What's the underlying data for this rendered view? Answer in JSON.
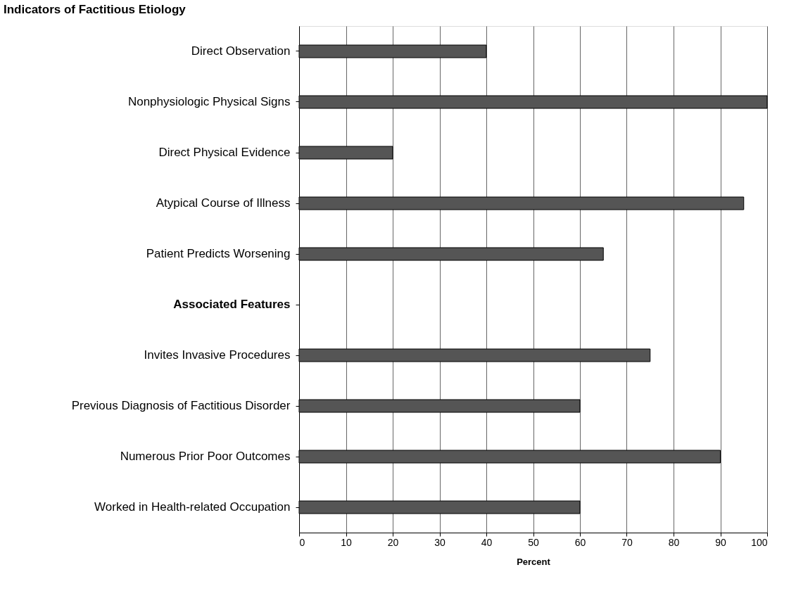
{
  "chart_data": {
    "type": "bar",
    "orientation": "horizontal",
    "title": "Indicators of Factitious Etiology",
    "xlabel": "Percent",
    "categories": [
      "Direct Observation",
      "Nonphysiologic Physical Signs",
      "Direct Physical Evidence",
      "Atypical Course of Illness",
      "Patient Predicts Worsening",
      "Associated Features",
      "Invites Invasive Procedures",
      "Previous Diagnosis of Factitious Disorder",
      "Numerous Prior Poor Outcomes",
      "Worked in Health-related Occupation"
    ],
    "values": [
      40,
      100,
      20,
      95,
      65,
      null,
      75,
      60,
      90,
      60
    ],
    "color": "#555555",
    "xlim": [
      0,
      100
    ],
    "xticks": [
      0,
      10,
      20,
      30,
      40,
      50,
      60,
      70,
      80,
      90,
      100
    ],
    "grid": "x"
  }
}
